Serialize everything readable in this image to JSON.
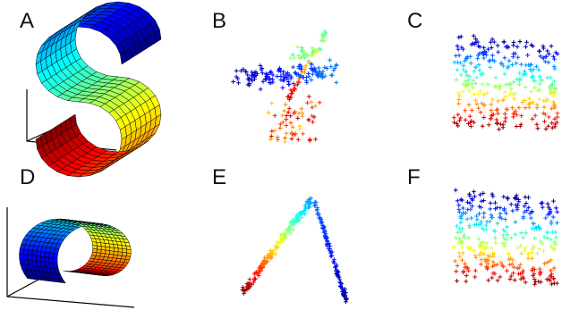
{
  "panels": [
    {
      "label": "A",
      "kind": "surface",
      "shape": "s-curve",
      "colormap": "jet"
    },
    {
      "label": "B",
      "kind": "scatter",
      "marker": "+",
      "colormap": "jet"
    },
    {
      "label": "C",
      "kind": "scatter",
      "marker": "+",
      "colormap": "jet"
    },
    {
      "label": "D",
      "kind": "surface",
      "shape": "swiss-roll",
      "colormap": "jet"
    },
    {
      "label": "E",
      "kind": "scatter",
      "marker": "+",
      "colormap": "jet"
    },
    {
      "label": "F",
      "kind": "scatter",
      "marker": "+",
      "colormap": "jet"
    }
  ],
  "colors": {
    "jet_blue": "#0000c8",
    "jet_cyan": "#00d8ff",
    "jet_green": "#80ff80",
    "jet_yellow": "#ffff00",
    "jet_orange": "#ff8000",
    "jet_red": "#cc0000"
  }
}
